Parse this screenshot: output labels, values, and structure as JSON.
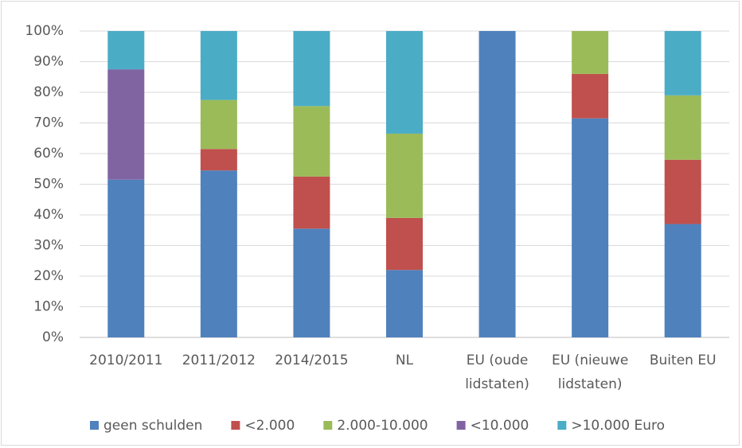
{
  "chart_data": {
    "type": "stacked_bar",
    "categories": [
      "2010/2011",
      "2011/2012",
      "2014/2015",
      "NL",
      "EU (oude\nlidstaten)",
      "EU (nieuwe\nlidstaten)",
      "Buiten EU"
    ],
    "series": [
      {
        "name": "geen schulden",
        "color": "#4f81bd",
        "values": [
          51.5,
          54.5,
          35.5,
          22,
          100,
          71.5,
          37
        ]
      },
      {
        "name": "<2.000",
        "color": "#c0504d",
        "values": [
          0,
          7,
          17,
          17,
          0,
          14.5,
          21
        ]
      },
      {
        "name": "2.000-10.000",
        "color": "#9bbb59",
        "values": [
          0,
          16,
          23,
          27.5,
          0,
          14,
          21
        ]
      },
      {
        "name": "<10.000",
        "color": "#8064a2",
        "values": [
          36,
          0,
          0,
          0,
          0,
          0,
          0
        ]
      },
      {
        "name": ">10.000 Euro",
        "color": "#4bacc6",
        "values": [
          12.5,
          22.5,
          24.5,
          33.5,
          0,
          0,
          21
        ]
      }
    ],
    "ylim": [
      0,
      100
    ],
    "yticks": [
      {
        "value": 0,
        "label": "0%"
      },
      {
        "value": 10,
        "label": "10%"
      },
      {
        "value": 20,
        "label": "20%"
      },
      {
        "value": 30,
        "label": "30%"
      },
      {
        "value": 40,
        "label": "40%"
      },
      {
        "value": 50,
        "label": "50%"
      },
      {
        "value": 60,
        "label": "60%"
      },
      {
        "value": 70,
        "label": "70%"
      },
      {
        "value": 80,
        "label": "80%"
      },
      {
        "value": 90,
        "label": "90%"
      },
      {
        "value": 100,
        "label": "100%"
      }
    ],
    "grid": true,
    "legend": "bottom"
  }
}
